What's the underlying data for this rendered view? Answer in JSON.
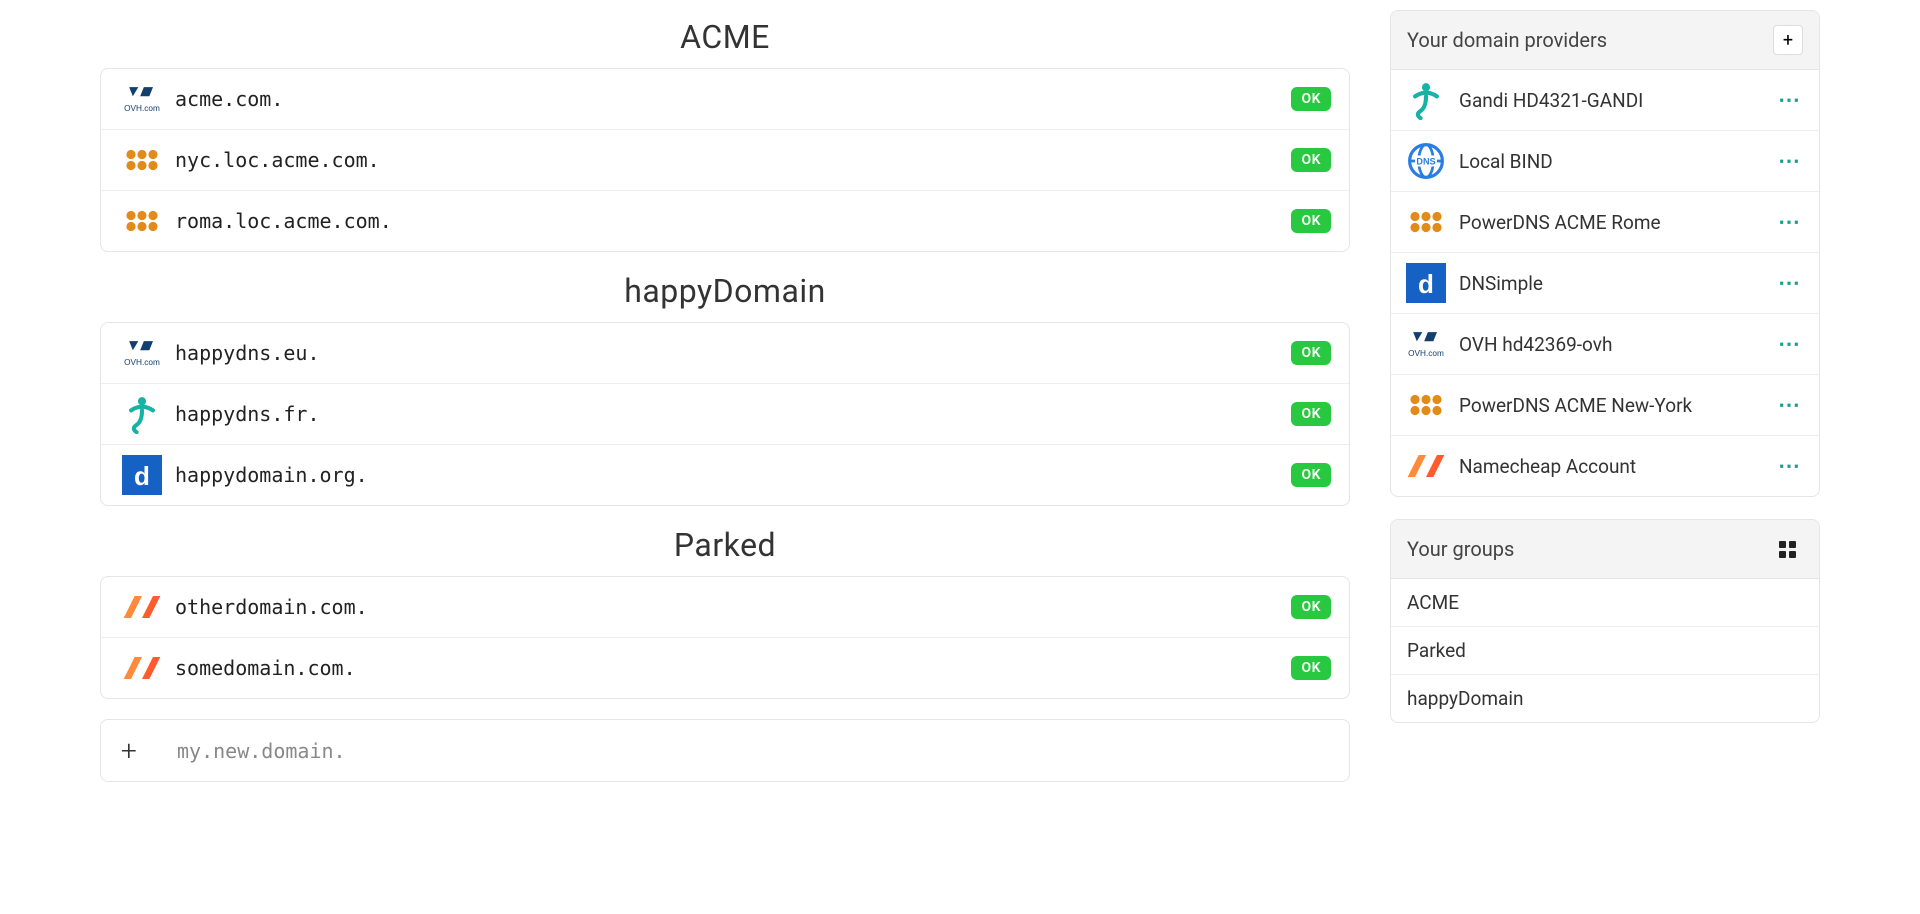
{
  "colors": {
    "status_ok_bg": "#28c840",
    "status_ok_text": "#ffffff",
    "border": "#e5e5e5",
    "panel_header_bg": "#f4f4f4",
    "dots": "#1a9e8f",
    "gandi_teal": "#16b3a5",
    "powerdns_orange": "#e38b1a",
    "dnsimple_blue": "#1662c4",
    "ovh_navy": "#123f6d",
    "namecheap_a": "#ff8a3c",
    "namecheap_b": "#ff5b2e",
    "bind_blue": "#2a7de1"
  },
  "domain_groups": [
    {
      "title": "ACME",
      "domains": [
        {
          "name": "acme.com.",
          "status": "OK",
          "icon": "ovh"
        },
        {
          "name": "nyc.loc.acme.com.",
          "status": "OK",
          "icon": "powerdns"
        },
        {
          "name": "roma.loc.acme.com.",
          "status": "OK",
          "icon": "powerdns"
        }
      ]
    },
    {
      "title": "happyDomain",
      "domains": [
        {
          "name": "happydns.eu.",
          "status": "OK",
          "icon": "ovh"
        },
        {
          "name": "happydns.fr.",
          "status": "OK",
          "icon": "gandi"
        },
        {
          "name": "happydomain.org.",
          "status": "OK",
          "icon": "dnsimple"
        }
      ]
    },
    {
      "title": "Parked",
      "domains": [
        {
          "name": "otherdomain.com.",
          "status": "OK",
          "icon": "namecheap"
        },
        {
          "name": "somedomain.com.",
          "status": "OK",
          "icon": "namecheap"
        }
      ]
    }
  ],
  "add_domain": {
    "placeholder": "my.new.domain."
  },
  "providers_panel": {
    "title": "Your domain providers",
    "add_label": "+",
    "items": [
      {
        "name": "Gandi HD4321-GANDI",
        "icon": "gandi"
      },
      {
        "name": "Local BIND",
        "icon": "bind"
      },
      {
        "name": "PowerDNS ACME Rome",
        "icon": "powerdns"
      },
      {
        "name": "DNSimple",
        "icon": "dnsimple"
      },
      {
        "name": "OVH hd42369-ovh",
        "icon": "ovh"
      },
      {
        "name": "PowerDNS ACME New-York",
        "icon": "powerdns"
      },
      {
        "name": "Namecheap Account",
        "icon": "namecheap"
      }
    ]
  },
  "groups_panel": {
    "title": "Your groups",
    "items": [
      "ACME",
      "Parked",
      "happyDomain"
    ]
  }
}
